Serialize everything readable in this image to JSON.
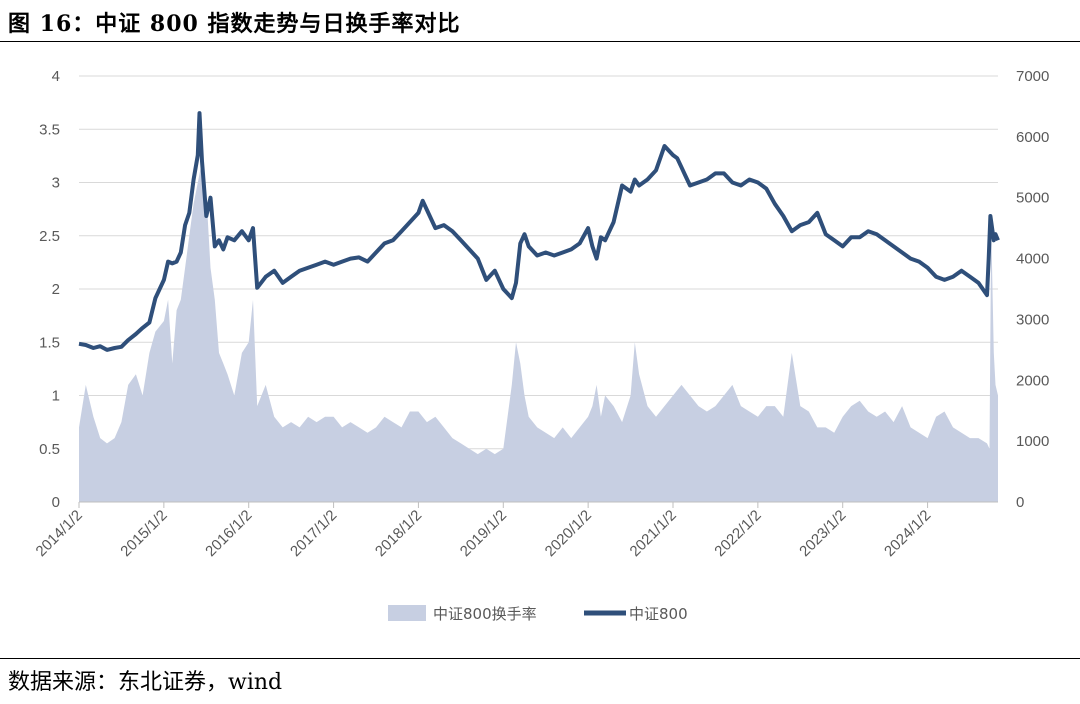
{
  "figure": {
    "title": "图 16：中证 800 指数走势与日换手率对比",
    "source": "数据来源：东北证券，wind"
  },
  "colors": {
    "index_line": "#2f4f7a",
    "turnover_area": "#c7cfe2",
    "grid": "#d9d9d9"
  },
  "chart_data": {
    "type": "line",
    "subtype": "dual-axis area + line",
    "x_tick_labels": [
      "2014/1/2",
      "2015/1/2",
      "2016/1/2",
      "2017/1/2",
      "2018/1/2",
      "2019/1/2",
      "2020/1/2",
      "2021/1/2",
      "2022/1/2",
      "2023/1/2",
      "2024/1/2"
    ],
    "x_range": [
      2014.0,
      2024.83
    ],
    "y_left": {
      "ticks": [
        "0",
        "0.5",
        "1",
        "1.5",
        "2",
        "2.5",
        "3",
        "3.5",
        "4"
      ],
      "ylim": [
        0,
        4
      ]
    },
    "y_right": {
      "ticks": [
        "0",
        "1000",
        "2000",
        "3000",
        "4000",
        "5000",
        "6000",
        "7000"
      ],
      "ylim": [
        0,
        7000
      ]
    },
    "grid": "horizontal",
    "legend_position": "bottom",
    "series": [
      {
        "name": "中证800换手率",
        "kind": "area",
        "axis": "left",
        "x": [
          2014.0,
          2014.08,
          2014.17,
          2014.25,
          2014.33,
          2014.42,
          2014.5,
          2014.58,
          2014.67,
          2014.75,
          2014.83,
          2014.9,
          2015.0,
          2015.05,
          2015.1,
          2015.15,
          2015.2,
          2015.25,
          2015.3,
          2015.35,
          2015.4,
          2015.45,
          2015.5,
          2015.55,
          2015.6,
          2015.65,
          2015.7,
          2015.75,
          2015.83,
          2015.92,
          2016.0,
          2016.05,
          2016.1,
          2016.2,
          2016.3,
          2016.4,
          2016.5,
          2016.6,
          2016.7,
          2016.8,
          2016.9,
          2017.0,
          2017.1,
          2017.2,
          2017.3,
          2017.4,
          2017.5,
          2017.6,
          2017.7,
          2017.8,
          2017.9,
          2018.0,
          2018.1,
          2018.2,
          2018.3,
          2018.4,
          2018.5,
          2018.6,
          2018.7,
          2018.8,
          2018.9,
          2019.0,
          2019.1,
          2019.15,
          2019.2,
          2019.25,
          2019.3,
          2019.4,
          2019.5,
          2019.6,
          2019.7,
          2019.8,
          2019.9,
          2020.0,
          2020.05,
          2020.1,
          2020.15,
          2020.2,
          2020.3,
          2020.4,
          2020.5,
          2020.55,
          2020.6,
          2020.7,
          2020.8,
          2020.9,
          2021.0,
          2021.1,
          2021.2,
          2021.3,
          2021.4,
          2021.5,
          2021.6,
          2021.7,
          2021.8,
          2021.9,
          2022.0,
          2022.1,
          2022.2,
          2022.3,
          2022.4,
          2022.5,
          2022.6,
          2022.7,
          2022.8,
          2022.9,
          2023.0,
          2023.1,
          2023.2,
          2023.3,
          2023.4,
          2023.5,
          2023.6,
          2023.7,
          2023.8,
          2023.9,
          2024.0,
          2024.1,
          2024.2,
          2024.3,
          2024.4,
          2024.5,
          2024.6,
          2024.7,
          2024.73,
          2024.75,
          2024.78,
          2024.8,
          2024.83
        ],
        "values": [
          0.7,
          1.1,
          0.8,
          0.6,
          0.55,
          0.6,
          0.75,
          1.1,
          1.2,
          1.0,
          1.4,
          1.6,
          1.7,
          1.9,
          1.3,
          1.8,
          1.9,
          2.2,
          2.5,
          2.8,
          3.0,
          3.2,
          2.9,
          2.2,
          1.9,
          1.4,
          1.3,
          1.2,
          1.0,
          1.4,
          1.5,
          1.9,
          0.9,
          1.1,
          0.8,
          0.7,
          0.75,
          0.7,
          0.8,
          0.75,
          0.8,
          0.8,
          0.7,
          0.75,
          0.7,
          0.65,
          0.7,
          0.8,
          0.75,
          0.7,
          0.85,
          0.85,
          0.75,
          0.8,
          0.7,
          0.6,
          0.55,
          0.5,
          0.45,
          0.5,
          0.45,
          0.5,
          1.1,
          1.5,
          1.3,
          1.0,
          0.8,
          0.7,
          0.65,
          0.6,
          0.7,
          0.6,
          0.7,
          0.8,
          0.9,
          1.1,
          0.8,
          1.0,
          0.9,
          0.75,
          1.0,
          1.5,
          1.2,
          0.9,
          0.8,
          0.9,
          1.0,
          1.1,
          1.0,
          0.9,
          0.85,
          0.9,
          1.0,
          1.1,
          0.9,
          0.85,
          0.8,
          0.9,
          0.9,
          0.8,
          1.4,
          0.9,
          0.85,
          0.7,
          0.7,
          0.65,
          0.8,
          0.9,
          0.95,
          0.85,
          0.8,
          0.85,
          0.75,
          0.9,
          0.7,
          0.65,
          0.6,
          0.8,
          0.85,
          0.7,
          0.65,
          0.6,
          0.6,
          0.55,
          0.5,
          2.6,
          1.4,
          1.1,
          1.0
        ]
      },
      {
        "name": "中证800",
        "kind": "line",
        "axis": "right",
        "x": [
          2014.0,
          2014.08,
          2014.17,
          2014.25,
          2014.33,
          2014.42,
          2014.5,
          2014.58,
          2014.67,
          2014.75,
          2014.83,
          2014.9,
          2015.0,
          2015.05,
          2015.1,
          2015.15,
          2015.2,
          2015.25,
          2015.3,
          2015.35,
          2015.4,
          2015.42,
          2015.45,
          2015.5,
          2015.55,
          2015.6,
          2015.65,
          2015.7,
          2015.75,
          2015.83,
          2015.92,
          2016.0,
          2016.05,
          2016.1,
          2016.2,
          2016.3,
          2016.4,
          2016.5,
          2016.6,
          2016.7,
          2016.8,
          2016.9,
          2017.0,
          2017.1,
          2017.2,
          2017.3,
          2017.4,
          2017.5,
          2017.6,
          2017.7,
          2017.8,
          2017.9,
          2018.0,
          2018.05,
          2018.1,
          2018.2,
          2018.3,
          2018.4,
          2018.5,
          2018.6,
          2018.7,
          2018.8,
          2018.9,
          2019.0,
          2019.1,
          2019.15,
          2019.2,
          2019.25,
          2019.3,
          2019.4,
          2019.5,
          2019.6,
          2019.7,
          2019.8,
          2019.9,
          2020.0,
          2020.05,
          2020.1,
          2020.15,
          2020.2,
          2020.3,
          2020.4,
          2020.5,
          2020.55,
          2020.6,
          2020.7,
          2020.8,
          2020.9,
          2021.0,
          2021.05,
          2021.1,
          2021.15,
          2021.2,
          2021.3,
          2021.4,
          2021.5,
          2021.6,
          2021.7,
          2021.8,
          2021.9,
          2022.0,
          2022.1,
          2022.2,
          2022.3,
          2022.4,
          2022.5,
          2022.6,
          2022.7,
          2022.8,
          2022.9,
          2023.0,
          2023.1,
          2023.2,
          2023.3,
          2023.4,
          2023.5,
          2023.6,
          2023.7,
          2023.8,
          2023.9,
          2024.0,
          2024.1,
          2024.2,
          2024.3,
          2024.4,
          2024.5,
          2024.6,
          2024.7,
          2024.72,
          2024.74,
          2024.76,
          2024.78,
          2024.8,
          2024.83
        ],
        "values": [
          2600,
          2580,
          2530,
          2560,
          2500,
          2530,
          2550,
          2660,
          2760,
          2860,
          2950,
          3350,
          3650,
          3950,
          3920,
          3950,
          4100,
          4550,
          4750,
          5300,
          5700,
          6390,
          5600,
          4700,
          5000,
          4200,
          4300,
          4150,
          4350,
          4300,
          4450,
          4300,
          4500,
          3520,
          3700,
          3800,
          3600,
          3700,
          3800,
          3850,
          3900,
          3950,
          3900,
          3950,
          4000,
          4020,
          3950,
          4100,
          4250,
          4300,
          4450,
          4600,
          4750,
          4950,
          4800,
          4500,
          4550,
          4450,
          4300,
          4150,
          4000,
          3650,
          3800,
          3500,
          3350,
          3600,
          4250,
          4400,
          4200,
          4050,
          4100,
          4050,
          4100,
          4150,
          4250,
          4500,
          4200,
          4000,
          4350,
          4300,
          4600,
          5200,
          5100,
          5300,
          5200,
          5300,
          5450,
          5850,
          5700,
          5650,
          5500,
          5350,
          5200,
          5250,
          5300,
          5400,
          5400,
          5250,
          5200,
          5300,
          5250,
          5150,
          4900,
          4700,
          4450,
          4550,
          4600,
          4750,
          4400,
          4300,
          4200,
          4350,
          4350,
          4450,
          4400,
          4300,
          4200,
          4100,
          4000,
          3950,
          3850,
          3700,
          3650,
          3700,
          3800,
          3700,
          3600,
          3400,
          4000,
          4700,
          4500,
          4300,
          4400,
          4300
        ]
      }
    ]
  }
}
